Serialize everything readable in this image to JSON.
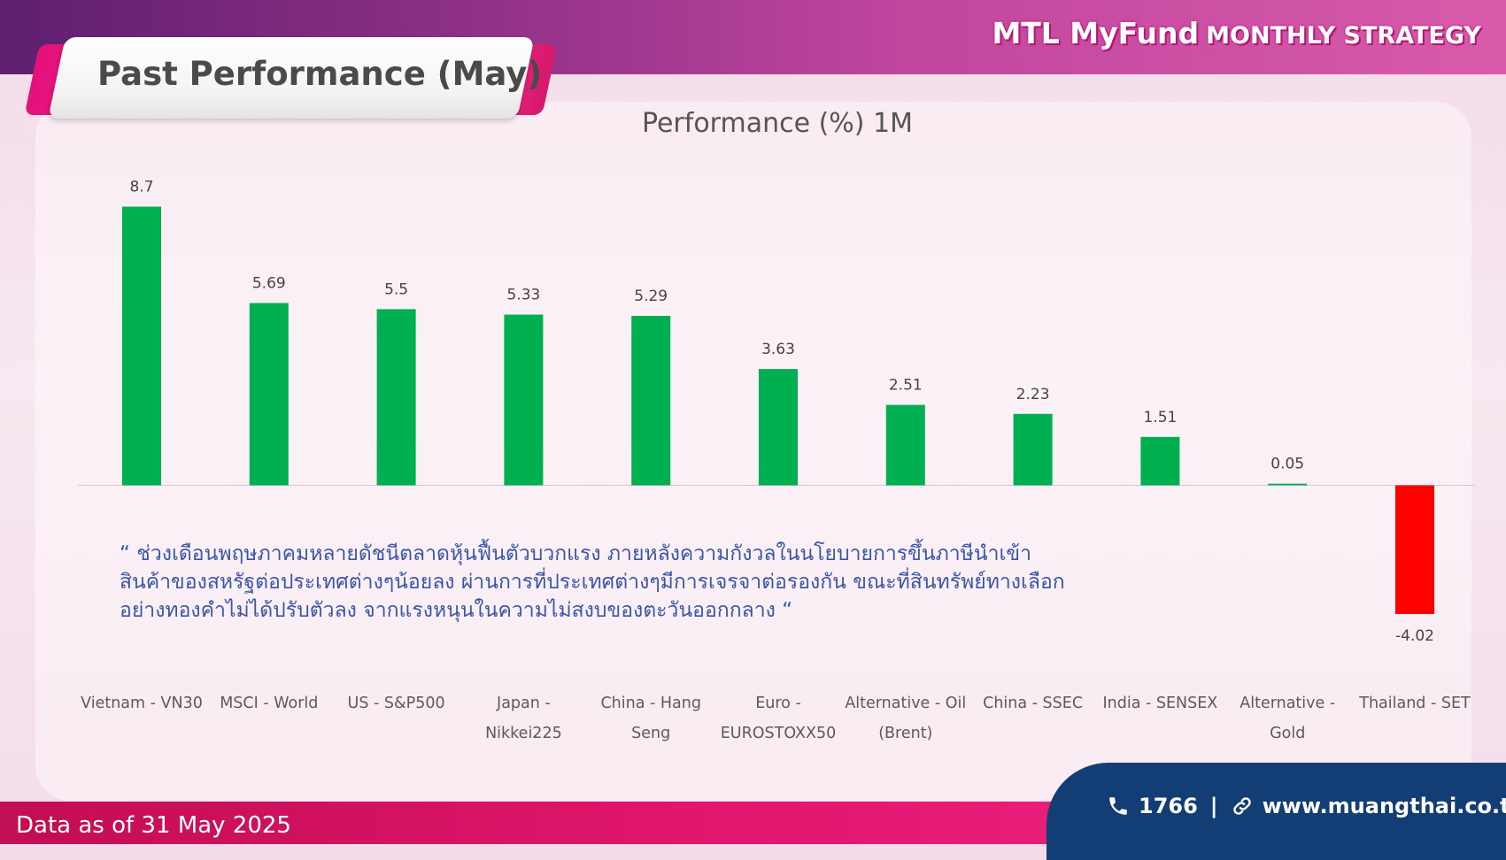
{
  "header": {
    "brand_main": "MTL MyFund",
    "brand_sub": "MONTHLY STRATEGY",
    "page_title": "Past Performance (May)"
  },
  "chart_data": {
    "type": "bar",
    "title": "Performance (%) 1M",
    "categories": [
      "Vietnam - VN30",
      "MSCI - World",
      "US - S&P500",
      "Japan - Nikkei225",
      "China - Hang Seng",
      "Euro - EUROSTOXX50",
      "Alternative - Oil (Brent)",
      "China - SSEC",
      "India - SENSEX",
      "Alternative - Gold",
      "Thailand - SET"
    ],
    "category_lines": [
      [
        "Vietnam - VN30"
      ],
      [
        "MSCI - World"
      ],
      [
        "US - S&P500"
      ],
      [
        "Japan -",
        "Nikkei225"
      ],
      [
        "China - Hang",
        "Seng"
      ],
      [
        "Euro -",
        "EUROSTOXX50"
      ],
      [
        "Alternative - Oil",
        "(Brent)"
      ],
      [
        "China - SSEC"
      ],
      [
        "India - SENSEX"
      ],
      [
        "Alternative -",
        "Gold"
      ],
      [
        "Thailand - SET"
      ]
    ],
    "values": [
      8.7,
      5.69,
      5.5,
      5.33,
      5.29,
      3.63,
      2.51,
      2.23,
      1.51,
      0.05,
      -4.02
    ],
    "data_labels": [
      "8.7",
      "5.69",
      "5.5",
      "5.33",
      "5.29",
      "3.63",
      "2.51",
      "2.23",
      "1.51",
      "0.05",
      "-4.02"
    ],
    "colors": {
      "positive": "#00b050",
      "negative": "#ff0000"
    },
    "xlabel": "",
    "ylabel": "",
    "grid": false,
    "legend": "none"
  },
  "commentary": "“ ช่วงเดือนพฤษภาคมหลายดัชนีตลาดหุ้นฟื้นตัวบวกแรง ภายหลังความกังวลในนโยบายการขึ้นภาษีนำเข้าสินค้าของสหรัฐต่อประเทศต่างๆน้อยลง ผ่านการที่ประเทศต่างๆมีการเจรจาต่อรองกัน ขณะที่สินทรัพย์ทางเลือกอย่างทองคำไม่ได้ปรับตัวลง จากแรงหนุนในความไม่สงบของตะวันออกกลาง “",
  "footer": {
    "note": "Data as of 31 May 2025",
    "phone": "1766",
    "separator": "|",
    "website": "www.muangthai.co.th",
    "phone_icon": "phone-icon",
    "link_icon": "link-icon"
  },
  "colors": {
    "brand_pink": "#e3166f",
    "brand_purple": "#7b2a82",
    "navy": "#123d75",
    "quote_blue": "#3a56a8"
  }
}
